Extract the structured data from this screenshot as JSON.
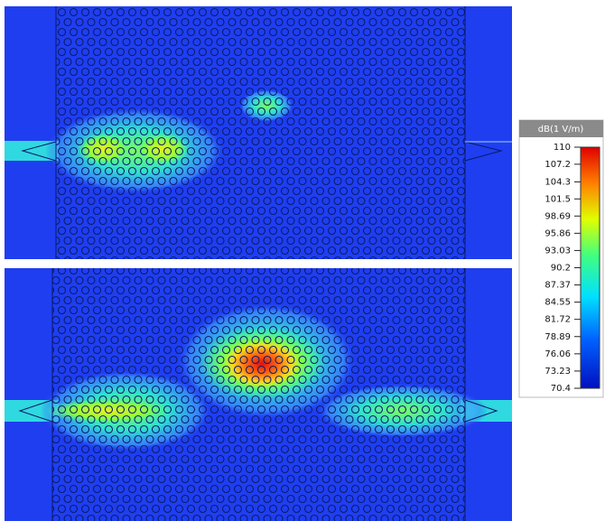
{
  "colorbar": {
    "title": "dB(1 V/m)",
    "range": [
      70.4,
      110
    ],
    "ticks": [
      110,
      107.2,
      104.3,
      101.5,
      98.69,
      95.86,
      93.03,
      90.2,
      87.37,
      84.55,
      81.72,
      78.89,
      76.06,
      73.23,
      70.4
    ]
  }
}
